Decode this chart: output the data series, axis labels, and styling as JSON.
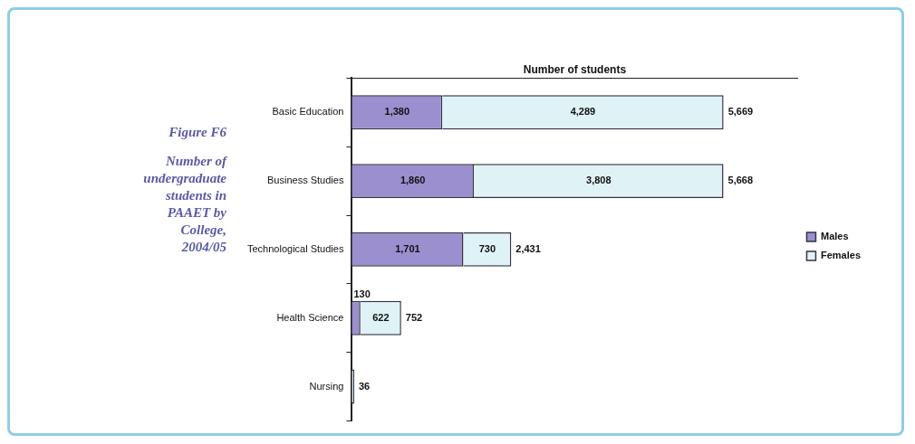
{
  "chart_data": {
    "type": "bar",
    "orientation": "horizontal",
    "stacked": true,
    "title": "Figure F6",
    "subtitle": "Number of undergraduate students in PAAET by College, 2004/05",
    "xlabel": "Number of students",
    "categories": [
      "Basic Education",
      "Business Studies",
      "Technological Studies",
      "Health Science",
      "Nursing"
    ],
    "series": [
      {
        "name": "Males",
        "color": "#9b8fd0",
        "values": [
          1380,
          1860,
          1701,
          130,
          null
        ],
        "value_labels": [
          "1,380",
          "1,860",
          "1,701",
          "130",
          null
        ]
      },
      {
        "name": "Females",
        "color": "#dff3f6",
        "values": [
          4289,
          3808,
          730,
          622,
          36
        ],
        "value_labels": [
          "4,289",
          "3,808",
          "730",
          "622",
          "36"
        ]
      }
    ],
    "totals": [
      "5,669",
      "5,668",
      "2,431",
      "752",
      null
    ],
    "xlim": [
      0,
      6800
    ],
    "tick_labels": "y",
    "legend": "right"
  }
}
